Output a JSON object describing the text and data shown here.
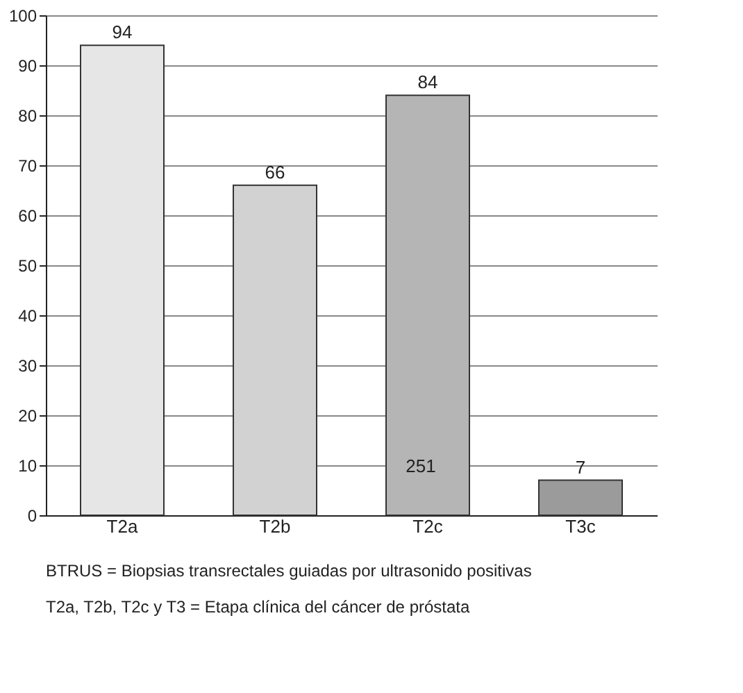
{
  "chart_data": {
    "type": "bar",
    "categories": [
      "T2a",
      "T2b",
      "T2c",
      "T3c"
    ],
    "values": [
      94,
      66,
      84,
      7
    ],
    "colors": [
      "#e6e6e6",
      "#d2d2d2",
      "#b5b5b5",
      "#9b9b9b"
    ],
    "ylim": [
      0,
      100
    ],
    "yticks": [
      0,
      10,
      20,
      30,
      40,
      50,
      60,
      70,
      80,
      90,
      100
    ],
    "grid": "y",
    "data_labels": true,
    "annotations": [
      "251",
      "BTRUS = Biopsias transrectales guiadas por ultrasonido positivas",
      "T2a, T2b, T2c y T3 = Etapa clínica del cáncer de próstata"
    ]
  }
}
